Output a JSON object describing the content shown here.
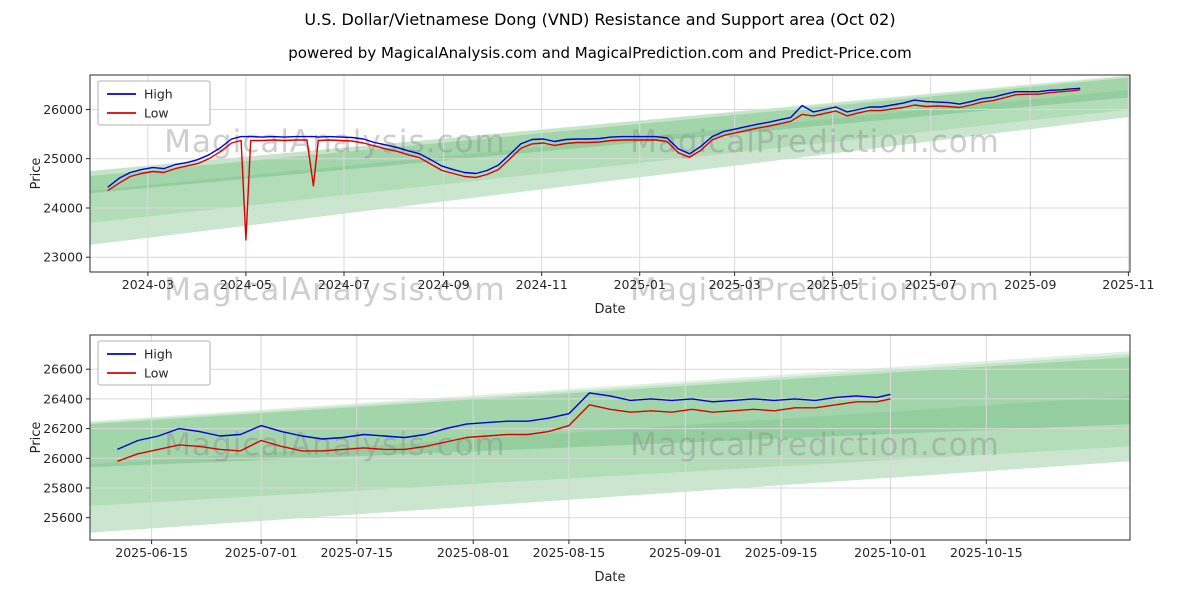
{
  "title": "U.S. Dollar/Vietnamese Dong  (VND) Resistance and Support area (Oct 02)",
  "subtitle": "powered by MagicalAnalysis.com and MagicalPrediction.com and Predict-Price.com",
  "watermark": {
    "texts": [
      "MagicalAnalysis.com",
      "MagicalPrediction.com"
    ]
  },
  "colors": {
    "high": "#0000dd",
    "low": "#dd0000",
    "band": "#2e9e2e"
  },
  "chart_data": [
    {
      "type": "line",
      "title": "",
      "xlabel": "Date",
      "ylabel": "Price",
      "xlim": [
        "2024-01-25",
        "2025-11-02"
      ],
      "ylim": [
        22700,
        26700
      ],
      "x_ticks": [
        "2024-03",
        "2024-05",
        "2024-07",
        "2024-09",
        "2024-11",
        "2025-01",
        "2025-03",
        "2025-05",
        "2025-07",
        "2025-09",
        "2025-11"
      ],
      "y_ticks": [
        23000,
        24000,
        25000,
        26000
      ],
      "grid": true,
      "legend": {
        "position": "upper-left",
        "entries": [
          {
            "label": "High",
            "color": "#0000dd"
          },
          {
            "label": "Low",
            "color": "#dd0000"
          }
        ]
      },
      "dates": [
        "2024-02-05",
        "2024-02-12",
        "2024-02-19",
        "2024-02-26",
        "2024-03-04",
        "2024-03-11",
        "2024-03-18",
        "2024-03-25",
        "2024-04-01",
        "2024-04-08",
        "2024-04-15",
        "2024-04-22",
        "2024-04-28",
        "2024-05-01",
        "2024-05-04",
        "2024-05-11",
        "2024-05-18",
        "2024-05-25",
        "2024-06-01",
        "2024-06-08",
        "2024-06-12",
        "2024-06-15",
        "2024-06-22",
        "2024-06-29",
        "2024-07-06",
        "2024-07-13",
        "2024-07-20",
        "2024-07-27",
        "2024-08-03",
        "2024-08-10",
        "2024-08-17",
        "2024-08-24",
        "2024-08-31",
        "2024-09-07",
        "2024-09-14",
        "2024-09-21",
        "2024-09-28",
        "2024-10-05",
        "2024-10-12",
        "2024-10-19",
        "2024-10-26",
        "2024-11-02",
        "2024-11-09",
        "2024-11-16",
        "2024-11-23",
        "2024-11-30",
        "2024-12-07",
        "2024-12-14",
        "2024-12-21",
        "2024-12-28",
        "2025-01-04",
        "2025-01-11",
        "2025-01-18",
        "2025-01-25",
        "2025-02-01",
        "2025-02-08",
        "2025-02-15",
        "2025-02-22",
        "2025-03-01",
        "2025-03-08",
        "2025-03-15",
        "2025-03-22",
        "2025-03-29",
        "2025-04-05",
        "2025-04-12",
        "2025-04-19",
        "2025-04-26",
        "2025-05-03",
        "2025-05-10",
        "2025-05-17",
        "2025-05-24",
        "2025-05-31",
        "2025-06-07",
        "2025-06-14",
        "2025-06-21",
        "2025-06-28",
        "2025-07-05",
        "2025-07-12",
        "2025-07-19",
        "2025-07-26",
        "2025-08-02",
        "2025-08-09",
        "2025-08-16",
        "2025-08-23",
        "2025-08-30",
        "2025-09-06",
        "2025-09-13",
        "2025-09-20",
        "2025-09-27",
        "2025-10-02"
      ],
      "series": [
        {
          "name": "High",
          "color": "#0000dd",
          "values": [
            24420,
            24600,
            24720,
            24780,
            24820,
            24800,
            24880,
            24920,
            24980,
            25080,
            25220,
            25400,
            25450,
            25450,
            25450,
            25440,
            25450,
            25440,
            25450,
            25450,
            25450,
            25440,
            25450,
            25440,
            25430,
            25400,
            25330,
            25280,
            25230,
            25160,
            25100,
            24980,
            24850,
            24780,
            24720,
            24700,
            24760,
            24870,
            25080,
            25300,
            25390,
            25400,
            25350,
            25390,
            25400,
            25400,
            25410,
            25440,
            25450,
            25450,
            25450,
            25450,
            25420,
            25200,
            25100,
            25250,
            25450,
            25550,
            25600,
            25650,
            25700,
            25740,
            25790,
            25840,
            26080,
            25950,
            26000,
            26050,
            25950,
            26000,
            26050,
            26050,
            26090,
            26130,
            26190,
            26160,
            26150,
            26140,
            26110,
            26160,
            26220,
            26250,
            26310,
            26360,
            26360,
            26360,
            26390,
            26400,
            26420,
            26430
          ]
        },
        {
          "name": "Low",
          "color": "#dd0000",
          "values": [
            24350,
            24500,
            24640,
            24700,
            24740,
            24720,
            24800,
            24850,
            24900,
            25000,
            25140,
            25320,
            25370,
            23350,
            25370,
            25370,
            25380,
            25370,
            25380,
            25380,
            24450,
            25370,
            25380,
            25370,
            25360,
            25320,
            25260,
            25200,
            25150,
            25080,
            25020,
            24890,
            24760,
            24700,
            24640,
            24620,
            24680,
            24780,
            24990,
            25210,
            25300,
            25320,
            25270,
            25310,
            25330,
            25330,
            25340,
            25370,
            25380,
            25380,
            25380,
            25380,
            25350,
            25120,
            25030,
            25170,
            25380,
            25470,
            25520,
            25570,
            25620,
            25660,
            25710,
            25760,
            25900,
            25870,
            25920,
            25970,
            25870,
            25930,
            25980,
            25980,
            26010,
            26040,
            26090,
            26060,
            26070,
            26060,
            26040,
            26090,
            26150,
            26180,
            26240,
            26300,
            26310,
            26310,
            26340,
            26360,
            26380,
            26400
          ]
        }
      ],
      "bands": [
        {
          "color": "#2e9e3e",
          "opacity": 0.15,
          "y_start": [
            23250,
            24750
          ],
          "y_end": [
            25850,
            26700
          ]
        },
        {
          "color": "#2e9e3e",
          "opacity": 0.15,
          "y_start": [
            23700,
            24750
          ],
          "y_end": [
            26000,
            26680
          ]
        },
        {
          "color": "#2e9e3e",
          "opacity": 0.22,
          "y_start": [
            24300,
            24650
          ],
          "y_end": [
            26250,
            26650
          ]
        },
        {
          "color": "#2e9e3e",
          "opacity": 0.12,
          "y_start": [
            23250,
            24350
          ],
          "y_end": [
            25850,
            26400
          ]
        }
      ]
    },
    {
      "type": "line",
      "title": "",
      "xlabel": "Date",
      "ylabel": "Price",
      "xlim": [
        "2025-06-06",
        "2025-11-05"
      ],
      "ylim": [
        25450,
        26830
      ],
      "x_ticks": [
        "2025-06-15",
        "2025-07-01",
        "2025-07-15",
        "2025-08-01",
        "2025-08-15",
        "2025-09-01",
        "2025-09-15",
        "2025-10-01",
        "2025-10-15"
      ],
      "y_ticks": [
        25600,
        25800,
        26000,
        26200,
        26400,
        26600
      ],
      "grid": true,
      "legend": {
        "position": "upper-left",
        "entries": [
          {
            "label": "High",
            "color": "#0000dd"
          },
          {
            "label": "Low",
            "color": "#dd0000"
          }
        ]
      },
      "dates": [
        "2025-06-10",
        "2025-06-13",
        "2025-06-16",
        "2025-06-19",
        "2025-06-22",
        "2025-06-25",
        "2025-06-28",
        "2025-07-01",
        "2025-07-04",
        "2025-07-07",
        "2025-07-10",
        "2025-07-13",
        "2025-07-16",
        "2025-07-19",
        "2025-07-22",
        "2025-07-25",
        "2025-07-28",
        "2025-07-31",
        "2025-08-03",
        "2025-08-06",
        "2025-08-09",
        "2025-08-12",
        "2025-08-15",
        "2025-08-18",
        "2025-08-21",
        "2025-08-24",
        "2025-08-27",
        "2025-08-30",
        "2025-09-02",
        "2025-09-05",
        "2025-09-08",
        "2025-09-11",
        "2025-09-14",
        "2025-09-17",
        "2025-09-20",
        "2025-09-23",
        "2025-09-26",
        "2025-09-29",
        "2025-10-01"
      ],
      "series": [
        {
          "name": "High",
          "color": "#0000dd",
          "values": [
            26060,
            26120,
            26150,
            26200,
            26180,
            26150,
            26160,
            26220,
            26180,
            26150,
            26130,
            26140,
            26160,
            26150,
            26140,
            26160,
            26200,
            26230,
            26240,
            26250,
            26250,
            26270,
            26300,
            26440,
            26420,
            26390,
            26400,
            26390,
            26400,
            26380,
            26390,
            26400,
            26390,
            26400,
            26390,
            26410,
            26420,
            26410,
            26430
          ]
        },
        {
          "name": "Low",
          "color": "#dd0000",
          "values": [
            25980,
            26030,
            26060,
            26090,
            26080,
            26060,
            26050,
            26120,
            26080,
            26050,
            26050,
            26060,
            26070,
            26060,
            26060,
            26080,
            26110,
            26140,
            26150,
            26160,
            26160,
            26180,
            26220,
            26360,
            26330,
            26310,
            26320,
            26310,
            26330,
            26310,
            26320,
            26330,
            26320,
            26340,
            26340,
            26360,
            26380,
            26380,
            26400
          ]
        }
      ],
      "bands": [
        {
          "color": "#2e9e3e",
          "opacity": 0.15,
          "y_start": [
            25500,
            26250
          ],
          "y_end": [
            25980,
            26720
          ]
        },
        {
          "color": "#2e9e3e",
          "opacity": 0.15,
          "y_start": [
            25680,
            26240
          ],
          "y_end": [
            26080,
            26700
          ]
        },
        {
          "color": "#2e9e3e",
          "opacity": 0.22,
          "y_start": [
            25940,
            26230
          ],
          "y_end": [
            26230,
            26680
          ]
        },
        {
          "color": "#2e9e3e",
          "opacity": 0.12,
          "y_start": [
            25500,
            25960
          ],
          "y_end": [
            25980,
            26420
          ]
        }
      ]
    }
  ]
}
